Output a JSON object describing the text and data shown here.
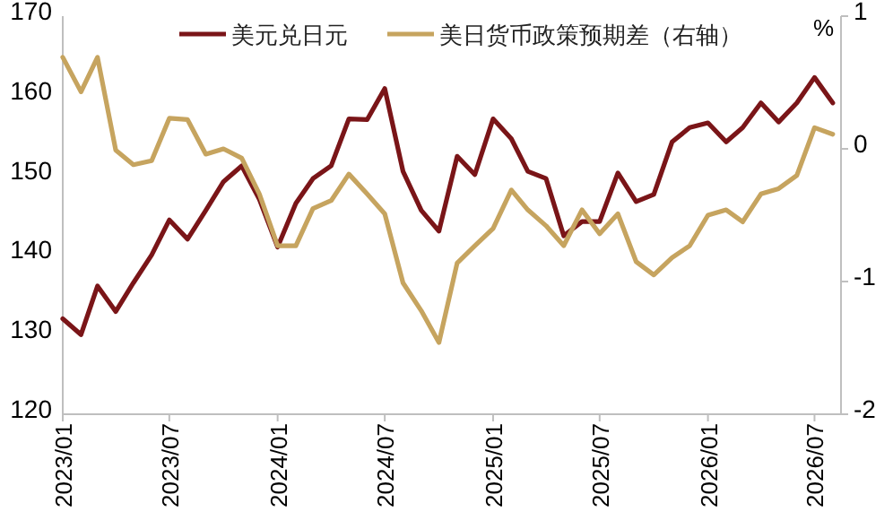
{
  "chart_data": {
    "type": "line",
    "y2label": "%",
    "legend": "top",
    "grid": false,
    "x": [
      "2023-01",
      "2023-02",
      "2023-03",
      "2023-04",
      "2023-05",
      "2023-06",
      "2023-07",
      "2023-08",
      "2023-09",
      "2023-10",
      "2023-11",
      "2023-12",
      "2024-01",
      "2024-02",
      "2024-03",
      "2024-04",
      "2024-05",
      "2024-06",
      "2024-07",
      "2024-08",
      "2024-09",
      "2024-10",
      "2024-11",
      "2024-12",
      "2025-01",
      "2025-02",
      "2025-03",
      "2025-04",
      "2025-05",
      "2025-06",
      "2025-07",
      "2025-08",
      "2025-09",
      "2025-10",
      "2025-11",
      "2025-12",
      "2026-01",
      "2026-02",
      "2026-03",
      "2026-04",
      "2026-05",
      "2026-06",
      "2026-07",
      "2026-08"
    ],
    "xlim": [
      "2023-01-01",
      "2026-08-15"
    ],
    "xticks": [
      {
        "value": "2023-01",
        "label": "2023/01"
      },
      {
        "value": "2023-07",
        "label": "2023/07"
      },
      {
        "value": "2024-01",
        "label": "2024/01"
      },
      {
        "value": "2024-07",
        "label": "2024/07"
      },
      {
        "value": "2025-01",
        "label": "2025/01"
      },
      {
        "value": "2025-07",
        "label": "2025/07"
      },
      {
        "value": "2026-01",
        "label": "2026/01"
      },
      {
        "value": "2026-07",
        "label": "2026/07"
      }
    ],
    "ylim": [
      120,
      170
    ],
    "yticks": [
      120,
      130,
      140,
      150,
      160,
      170
    ],
    "y2lim": [
      -2,
      1
    ],
    "y2ticks": [
      -2,
      -1,
      0,
      1
    ],
    "series": [
      {
        "name": "美元兑日元",
        "color": "#7a1518",
        "values": [
          132.0,
          130.0,
          136.1,
          132.9,
          136.5,
          140.0,
          144.4,
          142.0,
          145.6,
          149.2,
          151.2,
          147.0,
          141.0,
          146.5,
          149.6,
          151.2,
          157.1,
          157.0,
          160.9,
          150.5,
          145.6,
          143.0,
          152.4,
          150.1,
          157.1,
          154.6,
          150.5,
          149.6,
          142.4,
          144.2,
          144.2,
          150.3,
          146.7,
          147.6,
          154.2,
          156.0,
          156.6,
          154.2,
          156.0,
          159.1,
          156.7,
          159.1,
          162.3,
          159.1
        ]
      },
      {
        "name": "美日货币政策预期差（右轴）",
        "color": "#c6a45f",
        "axis": "y2",
        "values": [
          0.69,
          0.43,
          0.69,
          -0.01,
          -0.12,
          -0.09,
          0.23,
          0.22,
          -0.04,
          0.0,
          -0.07,
          -0.34,
          -0.73,
          -0.73,
          -0.45,
          -0.39,
          -0.19,
          -0.34,
          -0.49,
          -1.01,
          -1.22,
          -1.46,
          -0.86,
          -0.73,
          -0.6,
          -0.31,
          -0.46,
          -0.58,
          -0.73,
          -0.46,
          -0.64,
          -0.49,
          -0.85,
          -0.95,
          -0.82,
          -0.73,
          -0.5,
          -0.46,
          -0.55,
          -0.34,
          -0.3,
          -0.2,
          0.16,
          0.11
        ]
      }
    ]
  }
}
